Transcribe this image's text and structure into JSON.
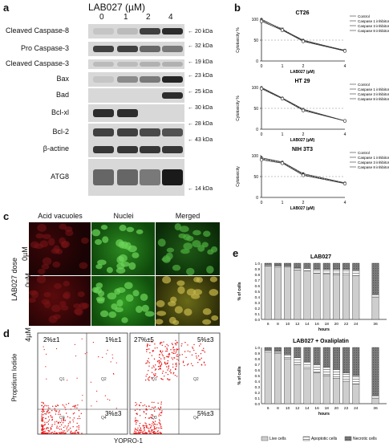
{
  "panel_a": {
    "letter": "a",
    "title": "LAB027 (µM)",
    "lanes": [
      "0",
      "1",
      "2",
      "4"
    ],
    "proteins": [
      {
        "name": "Cleaved Caspase-8",
        "kda": "20 kDa"
      },
      {
        "name": "Pro Caspase-3",
        "kda": "32 kDa"
      },
      {
        "name": "Cleaved Caspase-3",
        "kda": "19 kDa"
      },
      {
        "name": "Bax",
        "kda": "23 kDa"
      },
      {
        "name": "Bad",
        "kda": "25 kDa"
      },
      {
        "name": "Bcl-xl",
        "kda": "30 kDa"
      },
      {
        "name": "Bcl-2",
        "kda": "28 kDa"
      },
      {
        "name": "β-actine",
        "kda": "43 kDa"
      },
      {
        "name": "ATG8",
        "kda": ""
      }
    ],
    "extra_kda": "14 kDa"
  },
  "panel_b": {
    "letter": "b",
    "legend": [
      "Control",
      "Caspase 1 inhibitor",
      "Caspase 3 inhibitor",
      "Caspase 8 inhibitor"
    ]
  },
  "panel_c": {
    "letter": "c",
    "columns": [
      "Acid vacuoles",
      "Nuclei",
      "Merged"
    ],
    "side_label": "LAB027 dose",
    "rows": [
      "0µM",
      "4µM"
    ]
  },
  "panel_d": {
    "letter": "d",
    "ylabel": "Propidium Iodide",
    "xlabel": "YOPRO-1",
    "left": {
      "tl": "2%±1",
      "tr": "1%±1",
      "br": "3%±3"
    },
    "right": {
      "tl": "27%±5",
      "tr": "5%±3",
      "br": "5%±3"
    },
    "quads": [
      "Q1",
      "Q2",
      "Q3",
      "Q4"
    ]
  },
  "panel_e": {
    "letter": "e",
    "legend": [
      "Live cells",
      "Apoptotic cells",
      "Necrotic cells"
    ]
  },
  "chart_data": [
    {
      "type": "line",
      "title": "CT26",
      "xlabel": "LAB027 (µM)",
      "ylabel": "Cytotoxicity %",
      "x": [
        0,
        1,
        2,
        4
      ],
      "xticks": [
        "0",
        "1",
        "2",
        "4"
      ],
      "ylim": [
        0,
        100
      ],
      "yticks": [
        0,
        50,
        100
      ],
      "refline": 50,
      "series": [
        {
          "name": "Control",
          "values": [
            100,
            75,
            50,
            25
          ]
        },
        {
          "name": "Caspase 1 inhibitor",
          "values": [
            98,
            77,
            48,
            26
          ]
        },
        {
          "name": "Caspase 3 inhibitor",
          "values": [
            97,
            73,
            49,
            24
          ]
        },
        {
          "name": "Caspase 8 inhibitor",
          "values": [
            95,
            74,
            47,
            24
          ]
        }
      ]
    },
    {
      "type": "line",
      "title": "HT 29",
      "xlabel": "LAB027 (µM)",
      "ylabel": "Cytotoxicity %",
      "x": [
        0,
        1,
        2,
        4
      ],
      "xticks": [
        "0",
        "1",
        "2",
        "4"
      ],
      "ylim": [
        0,
        100
      ],
      "yticks": [
        0,
        50,
        100
      ],
      "refline": 50,
      "series": [
        {
          "name": "Control",
          "values": [
            100,
            75,
            48,
            20
          ]
        },
        {
          "name": "Caspase 1 inhibitor",
          "values": [
            99,
            74,
            47,
            20
          ]
        },
        {
          "name": "Caspase 3 inhibitor",
          "values": [
            98,
            74,
            46,
            20
          ]
        },
        {
          "name": "Caspase 8 inhibitor",
          "values": [
            97,
            73,
            45,
            20
          ]
        }
      ]
    },
    {
      "type": "line",
      "title": "NIH 3T3",
      "xlabel": "LAB027 (µM)",
      "ylabel": "Cytotoxicity",
      "x": [
        0,
        1,
        2,
        4
      ],
      "xticks": [
        "0",
        "1",
        "2",
        "4"
      ],
      "ylim": [
        0,
        100
      ],
      "yticks": [
        0,
        50,
        100
      ],
      "refline": 50,
      "series": [
        {
          "name": "Control",
          "values": [
            95,
            85,
            57,
            35
          ]
        },
        {
          "name": "Caspase 1 inhibitor",
          "values": [
            93,
            84,
            55,
            34
          ]
        },
        {
          "name": "Caspase 3 inhibitor",
          "values": [
            92,
            83,
            54,
            34
          ]
        },
        {
          "name": "Caspase 8 inhibitor",
          "values": [
            90,
            82,
            53,
            33
          ]
        }
      ]
    },
    {
      "type": "bar",
      "title": "LAB027",
      "xlabel": "hours",
      "ylabel": "% of cells",
      "categories": [
        "6",
        "8",
        "10",
        "12",
        "14",
        "16",
        "18",
        "20",
        "22",
        "24",
        "36"
      ],
      "ylim": [
        0,
        1.0
      ],
      "yticks": [
        0,
        0.1,
        0.2,
        0.3,
        0.4,
        0.5,
        0.6,
        0.7,
        0.8,
        0.9,
        1.0
      ],
      "series": [
        {
          "name": "Live cells",
          "values": [
            0.95,
            0.93,
            0.94,
            0.88,
            0.86,
            0.82,
            0.81,
            0.8,
            0.79,
            0.78,
            0.4
          ]
        },
        {
          "name": "Apoptotic cells",
          "values": [
            0.02,
            0.03,
            0.02,
            0.04,
            0.05,
            0.07,
            0.08,
            0.09,
            0.1,
            0.1,
            0.05
          ]
        },
        {
          "name": "Necrotic cells",
          "values": [
            0.03,
            0.04,
            0.04,
            0.08,
            0.09,
            0.11,
            0.11,
            0.11,
            0.11,
            0.12,
            0.55
          ]
        }
      ]
    },
    {
      "type": "bar",
      "title": "LAB027 + Oxaliplatin",
      "xlabel": "hours",
      "ylabel": "% of cells",
      "categories": [
        "6",
        "8",
        "10",
        "12",
        "14",
        "16",
        "18",
        "20",
        "22",
        "24",
        "36"
      ],
      "ylim": [
        0,
        1.0
      ],
      "yticks": [
        0,
        0.1,
        0.2,
        0.3,
        0.4,
        0.5,
        0.6,
        0.7,
        0.8,
        0.9,
        1.0
      ],
      "series": [
        {
          "name": "Live cells",
          "values": [
            0.92,
            0.89,
            0.8,
            0.7,
            0.62,
            0.55,
            0.5,
            0.45,
            0.4,
            0.35,
            0.1
          ]
        },
        {
          "name": "Apoptotic cells",
          "values": [
            0.03,
            0.04,
            0.08,
            0.12,
            0.13,
            0.15,
            0.15,
            0.16,
            0.15,
            0.15,
            0.05
          ]
        },
        {
          "name": "Necrotic cells",
          "values": [
            0.05,
            0.07,
            0.12,
            0.18,
            0.25,
            0.3,
            0.35,
            0.39,
            0.45,
            0.5,
            0.85
          ]
        }
      ]
    }
  ]
}
